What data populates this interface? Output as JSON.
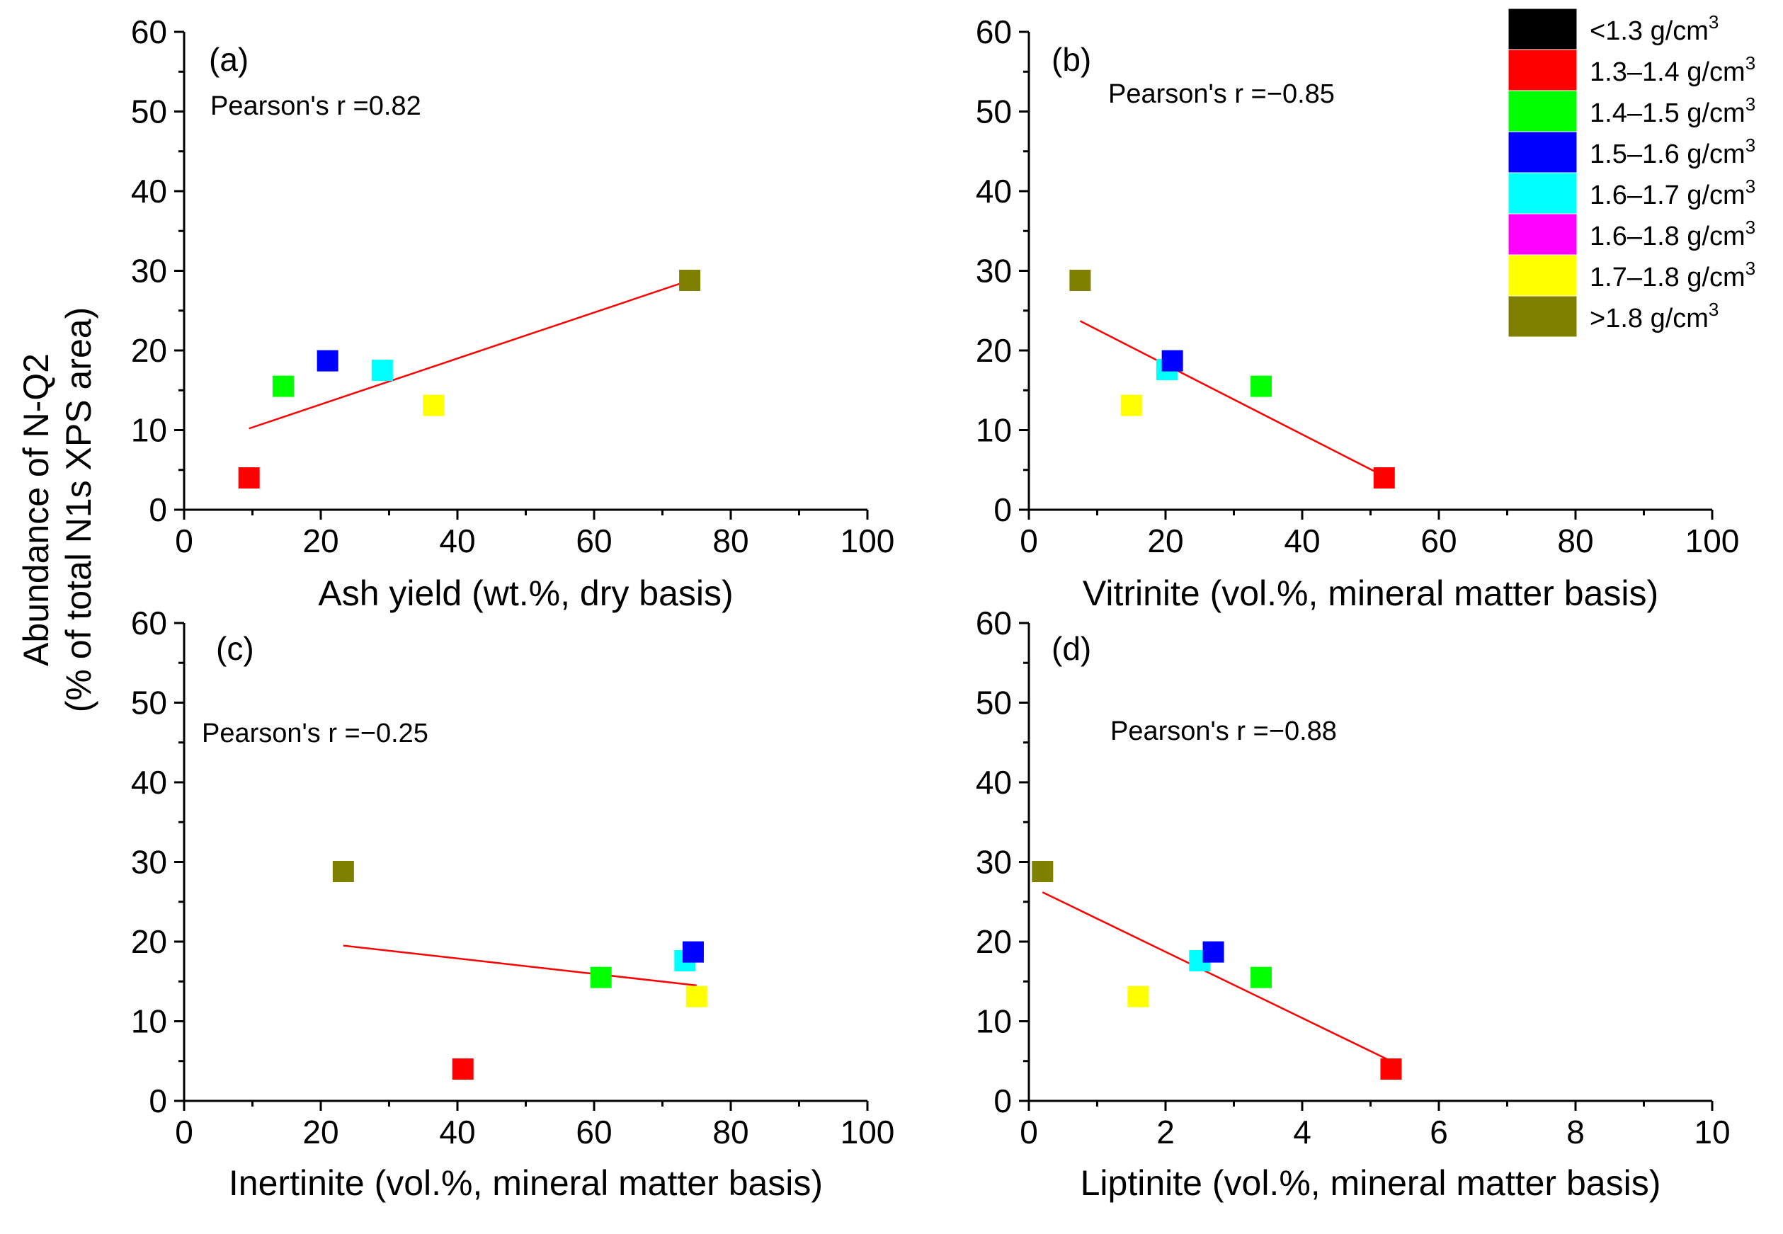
{
  "figure": {
    "y_axis_label_line1": "Abundance of N-Q2",
    "y_axis_label_line2": "(% of total N1s XPS area)"
  },
  "colors": {
    "lt_1.3": "#000000",
    "1.3-1.4": "#ff0000",
    "1.4-1.5": "#00ff00",
    "1.5-1.6": "#0000ff",
    "1.6-1.7": "#00ffff",
    "1.6-1.8": "#ff00ff",
    "1.7-1.8": "#ffff00",
    "gt_1.8": "#808000",
    "fit_line": "#ff0000"
  },
  "legend": {
    "items": [
      {
        "key": "lt_1.3",
        "label": "<1.3 g/cm",
        "sup": "3"
      },
      {
        "key": "1.3-1.4",
        "label": "1.3–1.4 g/cm",
        "sup": "3"
      },
      {
        "key": "1.4-1.5",
        "label": "1.4–1.5 g/cm",
        "sup": "3"
      },
      {
        "key": "1.5-1.6",
        "label": "1.5–1.6 g/cm",
        "sup": "3"
      },
      {
        "key": "1.6-1.7",
        "label": "1.6–1.7 g/cm",
        "sup": "3"
      },
      {
        "key": "1.6-1.8",
        "label": "1.6–1.8 g/cm",
        "sup": "3"
      },
      {
        "key": "1.7-1.8",
        "label": "1.7–1.8 g/cm",
        "sup": "3"
      },
      {
        "key": "gt_1.8",
        "label": ">1.8 g/cm",
        "sup": "3"
      }
    ]
  },
  "chart_data": [
    {
      "type": "scatter",
      "panel": "(a)",
      "xlabel": "Ash yield (wt.%, dry basis)",
      "ylabel": "Abundance of N-Q2 (% of total N1s XPS area)",
      "xlim": [
        0,
        100
      ],
      "ylim": [
        0,
        60
      ],
      "xticks": [
        0,
        20,
        40,
        60,
        80,
        100
      ],
      "yticks": [
        0,
        10,
        20,
        30,
        40,
        50,
        60
      ],
      "annotation": "Pearson's r =0.82",
      "points": [
        {
          "key": "1.3-1.4",
          "x": 9.5,
          "y": 4
        },
        {
          "key": "1.4-1.5",
          "x": 14.5,
          "y": 15.5
        },
        {
          "key": "1.5-1.6",
          "x": 21,
          "y": 18.7
        },
        {
          "key": "1.6-1.7",
          "x": 29,
          "y": 17.5
        },
        {
          "key": "1.7-1.8",
          "x": 36.5,
          "y": 13.1
        },
        {
          "key": "gt_1.8",
          "x": 74,
          "y": 28.8
        }
      ],
      "fit": {
        "x": [
          9.5,
          74
        ],
        "y": [
          10.2,
          28.8
        ]
      }
    },
    {
      "type": "scatter",
      "panel": "(b)",
      "xlabel": "Vitrinite (vol.%, mineral matter basis)",
      "xlim": [
        0,
        100
      ],
      "ylim": [
        0,
        60
      ],
      "xticks": [
        0,
        20,
        40,
        60,
        80,
        100
      ],
      "yticks": [
        0,
        10,
        20,
        30,
        40,
        50,
        60
      ],
      "annotation": "Pearson's r =−0.85",
      "points": [
        {
          "key": "gt_1.8",
          "x": 7.5,
          "y": 28.8
        },
        {
          "key": "1.7-1.8",
          "x": 15,
          "y": 13.1
        },
        {
          "key": "1.6-1.7",
          "x": 20.2,
          "y": 17.6
        },
        {
          "key": "1.5-1.6",
          "x": 21,
          "y": 18.7
        },
        {
          "key": "1.4-1.5",
          "x": 34,
          "y": 15.5
        },
        {
          "key": "1.3-1.4",
          "x": 52,
          "y": 4
        }
      ],
      "fit": {
        "x": [
          7.5,
          52
        ],
        "y": [
          23.7,
          4.2
        ]
      }
    },
    {
      "type": "scatter",
      "panel": "(c)",
      "xlabel": "Inertinite (vol.%, mineral matter basis)",
      "xlim": [
        0,
        100
      ],
      "ylim": [
        0,
        60
      ],
      "xticks": [
        0,
        20,
        40,
        60,
        80,
        100
      ],
      "yticks": [
        0,
        10,
        20,
        30,
        40,
        50,
        60
      ],
      "annotation": "Pearson's r =−0.25",
      "points": [
        {
          "key": "gt_1.8",
          "x": 23.3,
          "y": 28.8
        },
        {
          "key": "1.3-1.4",
          "x": 40.8,
          "y": 4
        },
        {
          "key": "1.4-1.5",
          "x": 61,
          "y": 15.5
        },
        {
          "key": "1.6-1.7",
          "x": 73.3,
          "y": 17.6
        },
        {
          "key": "1.5-1.6",
          "x": 74.5,
          "y": 18.7
        },
        {
          "key": "1.7-1.8",
          "x": 75,
          "y": 13.1
        }
      ],
      "fit": {
        "x": [
          23.3,
          75
        ],
        "y": [
          19.5,
          14.5
        ]
      }
    },
    {
      "type": "scatter",
      "panel": "(d)",
      "xlabel": "Liptinite (vol.%, mineral matter basis)",
      "xlim": [
        0,
        10
      ],
      "ylim": [
        0,
        60
      ],
      "xticks": [
        0,
        2,
        4,
        6,
        8,
        10
      ],
      "yticks": [
        0,
        10,
        20,
        30,
        40,
        50,
        60
      ],
      "annotation": "Pearson's r =−0.88",
      "points": [
        {
          "key": "gt_1.8",
          "x": 0.2,
          "y": 28.8
        },
        {
          "key": "1.7-1.8",
          "x": 1.6,
          "y": 13.1
        },
        {
          "key": "1.6-1.7",
          "x": 2.5,
          "y": 17.6
        },
        {
          "key": "1.5-1.6",
          "x": 2.7,
          "y": 18.7
        },
        {
          "key": "1.4-1.5",
          "x": 3.4,
          "y": 15.5
        },
        {
          "key": "1.3-1.4",
          "x": 5.3,
          "y": 4
        }
      ],
      "fit": {
        "x": [
          0.2,
          5.3
        ],
        "y": [
          26.2,
          5
        ]
      }
    }
  ]
}
